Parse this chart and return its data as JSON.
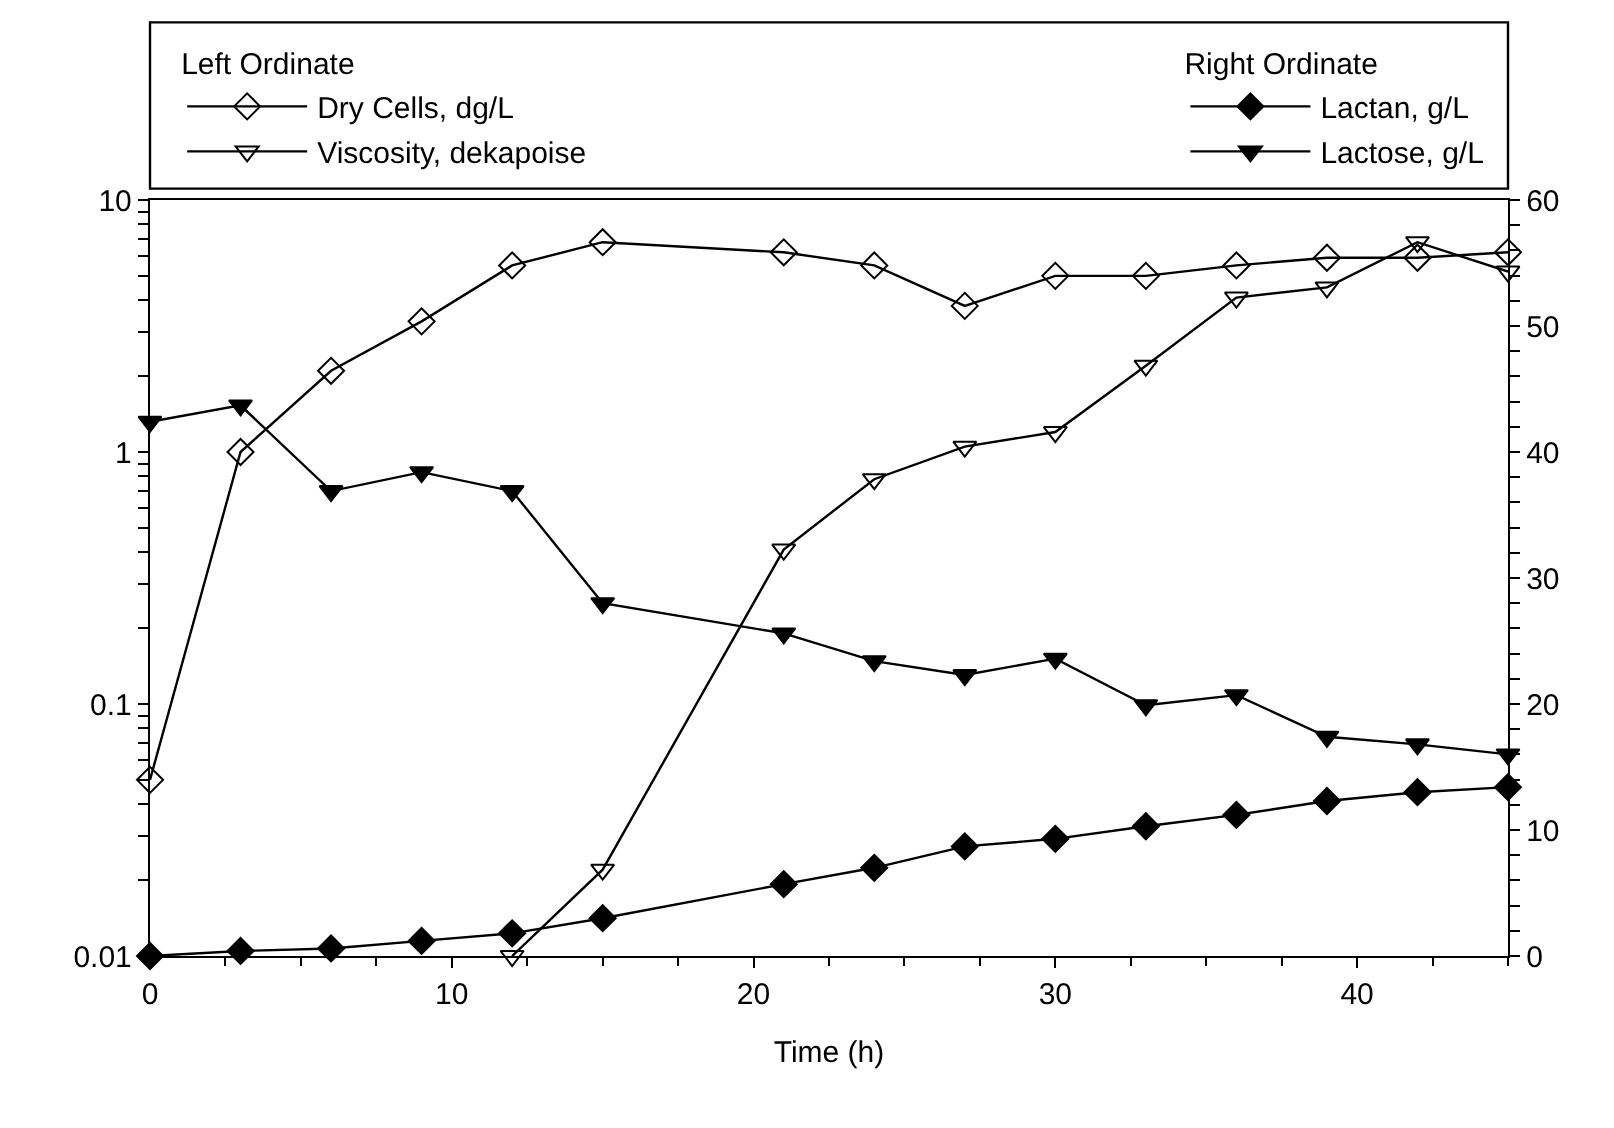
{
  "chart_data": {
    "type": "line",
    "xlabel": "Time (h)",
    "legend_title": [
      "Left Ordinate",
      "Right Ordinate"
    ],
    "legend": "top",
    "log": "y",
    "line_style": "solid",
    "xlim": [
      0,
      45
    ],
    "xticks": [
      0,
      10,
      20,
      30,
      40
    ],
    "ylim": [
      0.01,
      10
    ],
    "yticks": [
      0.01,
      0.1,
      1,
      10
    ],
    "y2lim": [
      0,
      60
    ],
    "y2ticks": [
      0,
      10,
      20,
      30,
      40,
      50,
      60
    ],
    "series": [
      {
        "name": "Dry Cells, dg/L",
        "color": "#000000",
        "marker": "diamond-open",
        "x": [
          0,
          3,
          6,
          9,
          12,
          15,
          21,
          24,
          27,
          30,
          33,
          36,
          39,
          42,
          45
        ],
        "values": [
          0.05,
          1.0,
          2.1,
          3.3,
          5.5,
          6.8,
          6.2,
          5.5,
          3.8,
          5.0,
          5.0,
          5.5,
          5.9,
          5.9,
          6.2
        ]
      },
      {
        "name": "Viscosity, dekapoise",
        "color": "#000000",
        "marker": "triangle-down-open",
        "x": [
          12,
          15,
          21,
          24,
          27,
          30,
          33,
          36,
          39,
          42,
          45
        ],
        "values": [
          0.01,
          0.022,
          0.41,
          0.78,
          1.05,
          1.2,
          2.2,
          4.1,
          4.5,
          6.8,
          5.2
        ]
      },
      {
        "name": "Lactan, g/L",
        "color": "#000000",
        "marker": "diamond",
        "axis": "y2",
        "x": [
          0,
          3,
          6,
          9,
          12,
          15,
          21,
          24,
          27,
          30,
          33,
          36,
          39,
          42,
          45
        ],
        "values": [
          0,
          0.4,
          0.6,
          1.2,
          1.8,
          3.0,
          5.7,
          7.0,
          8.7,
          9.3,
          10.3,
          11.2,
          12.3,
          13.0,
          13.4
        ]
      },
      {
        "name": "Lactose, g/L",
        "color": "#000000",
        "marker": "triangle-down",
        "axis": "y2",
        "x": [
          0,
          3,
          6,
          9,
          12,
          15,
          21,
          24,
          27,
          30,
          33,
          36,
          39,
          42,
          45
        ],
        "values": [
          42.4,
          43.7,
          36.9,
          38.4,
          36.9,
          28.0,
          25.6,
          23.4,
          22.3,
          23.6,
          19.9,
          20.7,
          17.4,
          16.8,
          16.0
        ]
      }
    ]
  }
}
